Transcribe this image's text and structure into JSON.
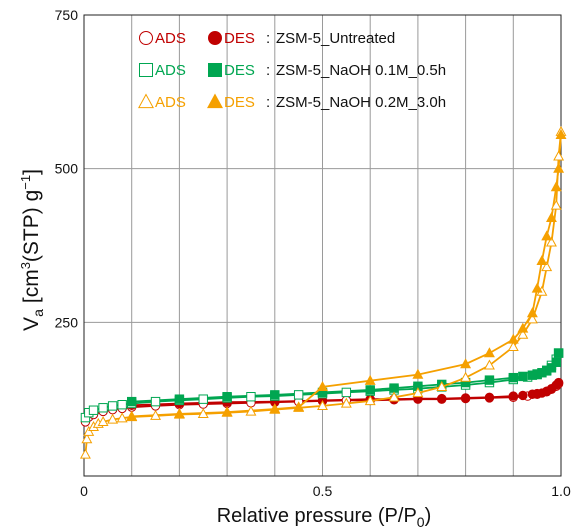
{
  "chart_data": {
    "type": "line",
    "xlabel": "Relative pressure (P/P",
    "xlabel_sub": "0",
    "xlabel_end": ")",
    "ylabel": "V",
    "ylabel_sub": "a",
    "ylabel_unit_pre": "[cm",
    "ylabel_unit_sup1": "3",
    "ylabel_unit_mid": "(STP) g",
    "ylabel_unit_sup2": "−1",
    "ylabel_unit_end": "]",
    "xlim": [
      0,
      1.0
    ],
    "ylim": [
      0,
      750
    ],
    "x_ticks": [
      {
        "value": 0,
        "label": "0"
      },
      {
        "value": 0.5,
        "label": "0.5"
      },
      {
        "value": 1.0,
        "label": "1.0"
      }
    ],
    "y_ticks": [
      {
        "value": 250,
        "label": "250"
      },
      {
        "value": 500,
        "label": "500"
      },
      {
        "value": 750,
        "label": "750"
      }
    ],
    "grid": true,
    "legend_position": "top-left",
    "legend": [
      {
        "ads": "ADS",
        "des": "DES",
        "name": "ZSM-5_Untreated",
        "sep": ":",
        "color": "#c00000",
        "marker": "circle"
      },
      {
        "ads": "ADS",
        "des": "DES",
        "name": "ZSM-5_NaOH 0.1M_0.5h",
        "sep": ":",
        "color": "#00a651",
        "marker": "square"
      },
      {
        "ads": "ADS",
        "des": "DES",
        "name": "ZSM-5_NaOH 0.2M_3.0h",
        "sep": ":",
        "color": "#f5a000",
        "marker": "triangle"
      }
    ],
    "series": [
      {
        "name": "ZSM-5_Untreated",
        "color": "#c00000",
        "marker": "circle",
        "ads": [
          [
            0.003,
            88
          ],
          [
            0.01,
            96
          ],
          [
            0.02,
            100
          ],
          [
            0.04,
            105
          ],
          [
            0.06,
            108
          ],
          [
            0.08,
            110
          ],
          [
            0.1,
            112
          ],
          [
            0.15,
            114
          ],
          [
            0.2,
            116
          ],
          [
            0.25,
            117
          ],
          [
            0.3,
            118
          ],
          [
            0.35,
            119
          ],
          [
            0.4,
            120
          ],
          [
            0.45,
            121
          ],
          [
            0.5,
            122
          ],
          [
            0.55,
            123
          ],
          [
            0.6,
            123
          ],
          [
            0.65,
            124
          ],
          [
            0.7,
            125
          ],
          [
            0.75,
            125
          ],
          [
            0.8,
            126
          ],
          [
            0.85,
            127
          ],
          [
            0.9,
            128
          ],
          [
            0.93,
            130
          ],
          [
            0.95,
            133
          ],
          [
            0.97,
            137
          ],
          [
            0.98,
            141
          ],
          [
            0.99,
            146
          ],
          [
            0.995,
            150
          ]
        ],
        "des": [
          [
            0.995,
            152
          ],
          [
            0.99,
            148
          ],
          [
            0.98,
            142
          ],
          [
            0.97,
            138
          ],
          [
            0.96,
            135
          ],
          [
            0.95,
            134
          ],
          [
            0.94,
            133
          ],
          [
            0.92,
            131
          ],
          [
            0.9,
            130
          ],
          [
            0.85,
            128
          ],
          [
            0.8,
            127
          ],
          [
            0.75,
            126
          ],
          [
            0.7,
            126
          ],
          [
            0.65,
            125
          ],
          [
            0.6,
            125
          ],
          [
            0.5,
            123
          ],
          [
            0.4,
            121
          ],
          [
            0.3,
            120
          ],
          [
            0.2,
            118
          ],
          [
            0.1,
            115
          ]
        ]
      },
      {
        "name": "ZSM-5_NaOH 0.1M_0.5h",
        "color": "#00a651",
        "marker": "square",
        "ads": [
          [
            0.003,
            95
          ],
          [
            0.01,
            103
          ],
          [
            0.02,
            107
          ],
          [
            0.04,
            111
          ],
          [
            0.06,
            114
          ],
          [
            0.08,
            116
          ],
          [
            0.1,
            118
          ],
          [
            0.15,
            121
          ],
          [
            0.2,
            123
          ],
          [
            0.25,
            125
          ],
          [
            0.3,
            127
          ],
          [
            0.35,
            129
          ],
          [
            0.4,
            130
          ],
          [
            0.45,
            132
          ],
          [
            0.5,
            134
          ],
          [
            0.55,
            136
          ],
          [
            0.6,
            138
          ],
          [
            0.65,
            140
          ],
          [
            0.7,
            142
          ],
          [
            0.75,
            145
          ],
          [
            0.8,
            148
          ],
          [
            0.85,
            152
          ],
          [
            0.9,
            157
          ],
          [
            0.93,
            161
          ],
          [
            0.95,
            165
          ],
          [
            0.97,
            172
          ],
          [
            0.98,
            180
          ],
          [
            0.99,
            190
          ],
          [
            0.995,
            200
          ]
        ],
        "des": [
          [
            0.995,
            200
          ],
          [
            0.99,
            185
          ],
          [
            0.98,
            176
          ],
          [
            0.97,
            171
          ],
          [
            0.96,
            168
          ],
          [
            0.95,
            166
          ],
          [
            0.94,
            164
          ],
          [
            0.92,
            162
          ],
          [
            0.9,
            160
          ],
          [
            0.85,
            156
          ],
          [
            0.8,
            152
          ],
          [
            0.75,
            149
          ],
          [
            0.7,
            146
          ],
          [
            0.65,
            143
          ],
          [
            0.6,
            140
          ],
          [
            0.5,
            136
          ],
          [
            0.4,
            132
          ],
          [
            0.3,
            129
          ],
          [
            0.2,
            125
          ],
          [
            0.1,
            121
          ]
        ]
      },
      {
        "name": "ZSM-5_NaOH 0.2M_3.0h",
        "color": "#f5a000",
        "marker": "triangle",
        "ads": [
          [
            0.003,
            35
          ],
          [
            0.006,
            60
          ],
          [
            0.01,
            72
          ],
          [
            0.02,
            80
          ],
          [
            0.03,
            85
          ],
          [
            0.04,
            88
          ],
          [
            0.06,
            92
          ],
          [
            0.08,
            94
          ],
          [
            0.1,
            96
          ],
          [
            0.15,
            98
          ],
          [
            0.2,
            100
          ],
          [
            0.25,
            101
          ],
          [
            0.3,
            103
          ],
          [
            0.35,
            105
          ],
          [
            0.4,
            108
          ],
          [
            0.45,
            111
          ],
          [
            0.5,
            114
          ],
          [
            0.55,
            118
          ],
          [
            0.6,
            122
          ],
          [
            0.65,
            128
          ],
          [
            0.7,
            135
          ],
          [
            0.75,
            145
          ],
          [
            0.8,
            160
          ],
          [
            0.85,
            180
          ],
          [
            0.9,
            210
          ],
          [
            0.92,
            230
          ],
          [
            0.94,
            255
          ],
          [
            0.96,
            300
          ],
          [
            0.97,
            340
          ],
          [
            0.98,
            380
          ],
          [
            0.99,
            440
          ],
          [
            0.995,
            520
          ],
          [
            1.0,
            560
          ]
        ],
        "des": [
          [
            1.0,
            555
          ],
          [
            0.995,
            500
          ],
          [
            0.99,
            470
          ],
          [
            0.98,
            420
          ],
          [
            0.97,
            390
          ],
          [
            0.96,
            350
          ],
          [
            0.95,
            305
          ],
          [
            0.94,
            265
          ],
          [
            0.92,
            240
          ],
          [
            0.9,
            222
          ],
          [
            0.85,
            200
          ],
          [
            0.8,
            182
          ],
          [
            0.7,
            165
          ],
          [
            0.6,
            155
          ],
          [
            0.5,
            145
          ],
          [
            0.45,
            112
          ],
          [
            0.4,
            109
          ],
          [
            0.3,
            104
          ],
          [
            0.2,
            101
          ],
          [
            0.1,
            97
          ]
        ]
      }
    ]
  }
}
